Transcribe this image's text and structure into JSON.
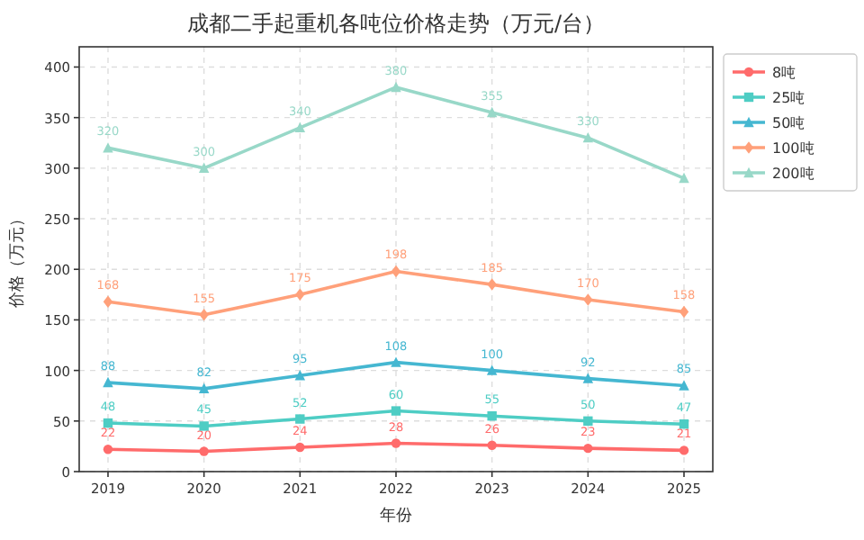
{
  "chart_data": {
    "type": "line",
    "title": "成都二手起重机各吨位价格走势（万元/台）",
    "xlabel": "年份",
    "ylabel": "价格（万元）",
    "categories": [
      "2019",
      "2020",
      "2021",
      "2022",
      "2023",
      "2024",
      "2025"
    ],
    "series": [
      {
        "name": "8吨",
        "color": "#ff6b6b",
        "marker": "circle",
        "values": [
          22,
          20,
          24,
          28,
          26,
          23,
          21
        ],
        "value_labels": [
          "22",
          "20",
          "24",
          "28",
          "26",
          "23",
          "21"
        ]
      },
      {
        "name": "25吨",
        "color": "#4ecdc4",
        "marker": "square",
        "values": [
          48,
          45,
          52,
          60,
          55,
          50,
          47
        ],
        "value_labels": [
          "48",
          "45",
          "52",
          "60",
          "55",
          "50",
          "47"
        ]
      },
      {
        "name": "50吨",
        "color": "#45b7d1",
        "marker": "triangle",
        "values": [
          88,
          82,
          95,
          108,
          100,
          92,
          85
        ],
        "value_labels": [
          "88",
          "82",
          "95",
          "108",
          "100",
          "92",
          "85"
        ]
      },
      {
        "name": "100吨",
        "color": "#ffa07a",
        "marker": "diamond",
        "values": [
          168,
          155,
          175,
          198,
          185,
          170,
          158
        ],
        "value_labels": [
          "168",
          "155",
          "175",
          "198",
          "185",
          "170",
          "158"
        ]
      },
      {
        "name": "200吨",
        "color": "#98d8c8",
        "marker": "triangle",
        "values": [
          320,
          300,
          340,
          380,
          355,
          330,
          290
        ],
        "value_labels": [
          "320",
          "300",
          "340",
          "380",
          "355",
          "330",
          null
        ]
      }
    ],
    "ylim": [
      0,
      420
    ],
    "yticks": [
      0,
      50,
      100,
      150,
      200,
      250,
      300,
      350,
      400
    ],
    "grid": true,
    "legend": "right",
    "line_style": "solid"
  }
}
